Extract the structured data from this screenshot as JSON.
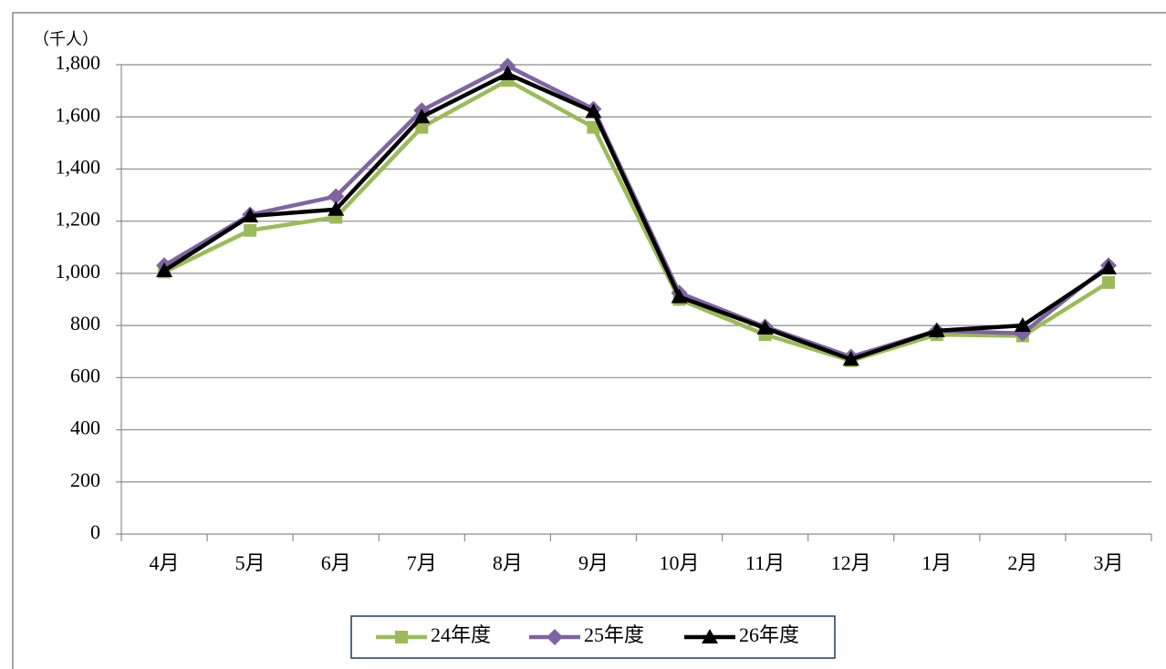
{
  "chart_data": {
    "type": "line",
    "y_axis_label": "（千人）",
    "categories": [
      "4月",
      "5月",
      "6月",
      "7月",
      "8月",
      "9月",
      "10月",
      "11月",
      "12月",
      "1月",
      "2月",
      "3月"
    ],
    "series": [
      {
        "name": "24年度",
        "color": "#9bbb59",
        "marker": "square",
        "values": [
          1005,
          1165,
          1215,
          1560,
          1740,
          1560,
          900,
          765,
          665,
          765,
          760,
          965
        ]
      },
      {
        "name": "25年度",
        "color": "#8064a2",
        "marker": "diamond",
        "values": [
          1030,
          1225,
          1295,
          1625,
          1795,
          1630,
          925,
          795,
          680,
          780,
          770,
          1030
        ]
      },
      {
        "name": "26年度",
        "color": "#000000",
        "marker": "triangle",
        "values": [
          1010,
          1220,
          1245,
          1600,
          1765,
          1620,
          910,
          790,
          670,
          780,
          800,
          1020
        ]
      }
    ],
    "ylim": [
      0,
      1800
    ],
    "yticks": [
      0,
      200,
      400,
      600,
      800,
      {
        "value": 1000,
        "label": "1,000"
      },
      {
        "value": 1200,
        "label": "1,200"
      },
      {
        "value": 1400,
        "label": "1,400"
      },
      {
        "value": 1600,
        "label": "1,600"
      },
      {
        "value": 1800,
        "label": "1,800"
      }
    ],
    "grid": true,
    "legend": "bottom"
  }
}
